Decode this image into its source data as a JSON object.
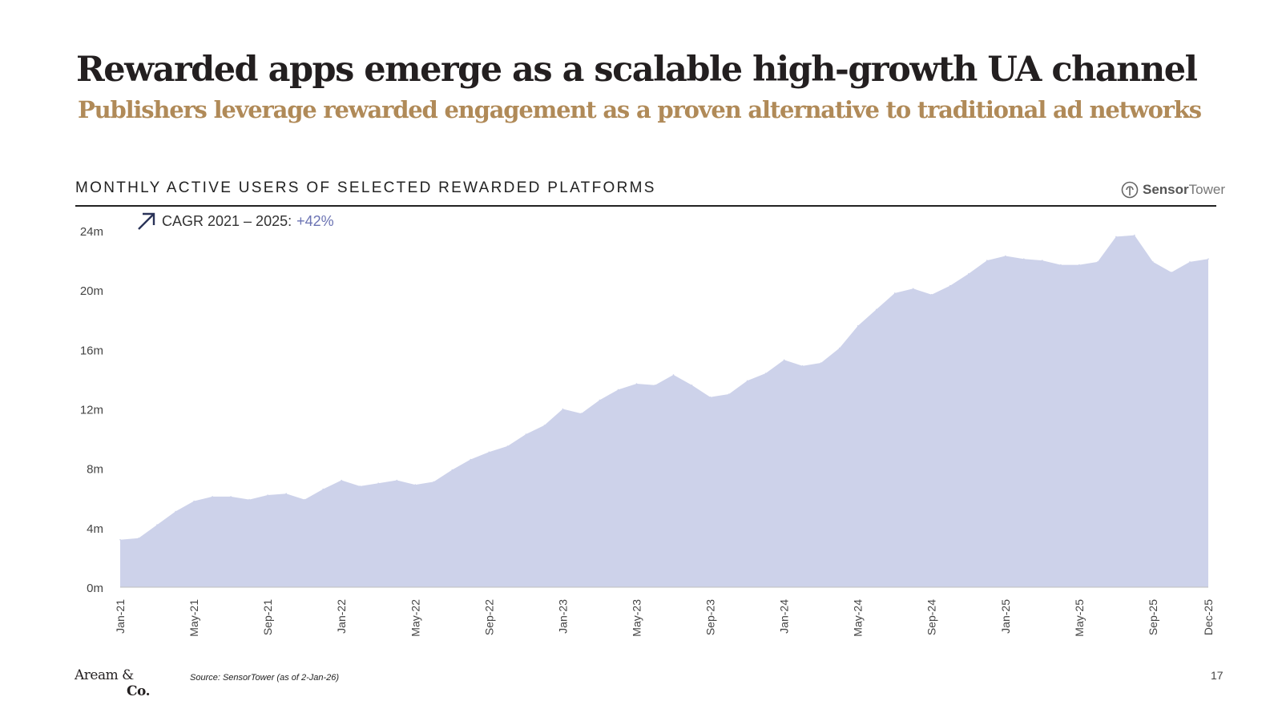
{
  "page": {
    "title": "Rewarded apps emerge as a scalable high-growth UA channel",
    "subtitle": "Publishers leverage rewarded engagement as a proven alternative to traditional ad networks",
    "chart_heading": "MONTHLY ACTIVE USERS OF SELECTED REWARDED PLATFORMS",
    "brand": {
      "part1": "Sensor",
      "part2": "Tower",
      "icon": "sensortower-logo-icon"
    },
    "cagr": {
      "label": "CAGR 2021 – 2025:",
      "value": "+42%",
      "icon": "arrow-up-right-icon"
    },
    "source": "Source: SensorTower (as of 2-Jan-26)",
    "footer_logo": {
      "line1": "Aream &",
      "line2": "Co."
    },
    "page_number": "17"
  },
  "colors": {
    "area_fill": "#cdd2ea",
    "cagr_value": "#6b73b3",
    "subtitle": "#b08a58",
    "title": "#231f20"
  },
  "chart_data": {
    "type": "area",
    "title": "MONTHLY ACTIVE USERS OF SELECTED REWARDED PLATFORMS",
    "ylabel": "",
    "xlabel": "",
    "ylim": [
      0,
      24
    ],
    "y_unit_suffix": "m",
    "y_ticks": [
      "0m",
      "4m",
      "8m",
      "12m",
      "16m",
      "20m",
      "24m"
    ],
    "x_tick_labels": [
      "Jan-21",
      "May-21",
      "Sep-21",
      "Jan-22",
      "May-22",
      "Sep-22",
      "Jan-23",
      "May-23",
      "Sep-23",
      "Jan-24",
      "May-24",
      "Sep-24",
      "Jan-25",
      "May-25",
      "Sep-25",
      "Dec-25"
    ],
    "grid": false,
    "x": [
      "Jan-21",
      "Feb-21",
      "Mar-21",
      "Apr-21",
      "May-21",
      "Jun-21",
      "Jul-21",
      "Aug-21",
      "Sep-21",
      "Oct-21",
      "Nov-21",
      "Dec-21",
      "Jan-22",
      "Feb-22",
      "Mar-22",
      "Apr-22",
      "May-22",
      "Jun-22",
      "Jul-22",
      "Aug-22",
      "Sep-22",
      "Oct-22",
      "Nov-22",
      "Dec-22",
      "Jan-23",
      "Feb-23",
      "Mar-23",
      "Apr-23",
      "May-23",
      "Jun-23",
      "Jul-23",
      "Aug-23",
      "Sep-23",
      "Oct-23",
      "Nov-23",
      "Dec-23",
      "Jan-24",
      "Feb-24",
      "Mar-24",
      "Apr-24",
      "May-24",
      "Jun-24",
      "Jul-24",
      "Aug-24",
      "Sep-24",
      "Oct-24",
      "Nov-24",
      "Dec-24",
      "Jan-25",
      "Feb-25",
      "Mar-25",
      "Apr-25",
      "May-25",
      "Jun-25",
      "Jul-25",
      "Aug-25",
      "Sep-25",
      "Oct-25",
      "Nov-25",
      "Dec-25"
    ],
    "series": [
      {
        "values": [
          3.2,
          3.3,
          4.2,
          5.1,
          5.8,
          6.1,
          6.1,
          5.9,
          6.2,
          6.3,
          5.9,
          6.6,
          7.2,
          6.8,
          7.0,
          7.2,
          6.9,
          7.1,
          7.9,
          8.6,
          9.1,
          9.5,
          10.3,
          10.9,
          12.0,
          11.7,
          12.6,
          13.3,
          13.7,
          13.6,
          14.3,
          13.6,
          12.8,
          13.0,
          13.9,
          14.4,
          15.3,
          14.9,
          15.1,
          16.1,
          17.6,
          18.7,
          19.8,
          20.1,
          19.7,
          20.3,
          21.1,
          22.0,
          22.3,
          22.1,
          22.0,
          21.7,
          21.7,
          21.9,
          23.6,
          23.7,
          21.9,
          21.2,
          21.9,
          22.1
        ]
      }
    ]
  }
}
